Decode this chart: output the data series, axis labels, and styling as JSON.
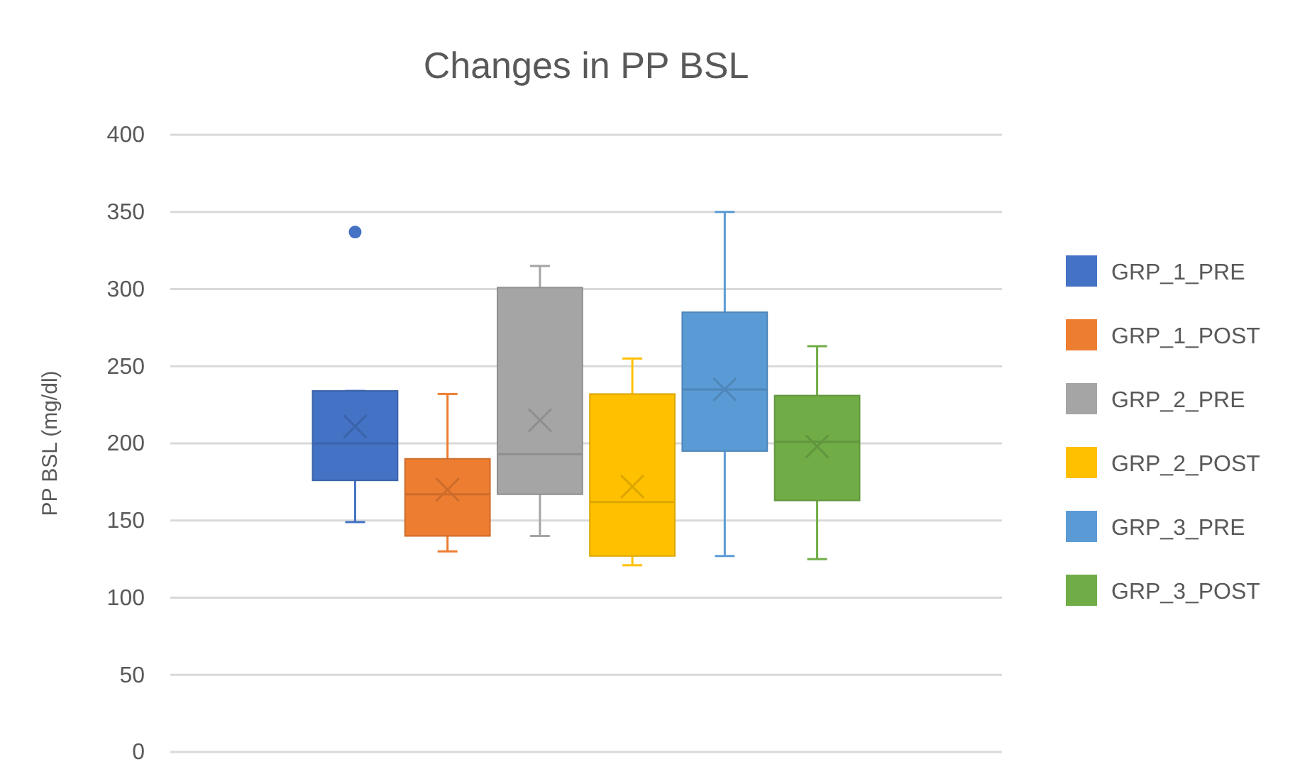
{
  "chart_data": {
    "type": "box",
    "title": "Changes in PP BSL",
    "ylabel": "PP BSL (mg/dl)",
    "categories": [
      null
    ],
    "ylim": [
      0,
      400
    ],
    "yticks": [
      0,
      50,
      100,
      150,
      200,
      250,
      300,
      350,
      400
    ],
    "grid": "y",
    "legend": "right",
    "series": [
      {
        "name": "GRP_1_PRE",
        "color": "#4472c4",
        "boxes": [
          {
            "low": 149,
            "q1": 176,
            "median": 200,
            "q3": 234,
            "high": 234,
            "mean": 211,
            "outliers": [
              337
            ]
          }
        ]
      },
      {
        "name": "GRP_1_POST",
        "color": "#ed7d31",
        "boxes": [
          {
            "low": 130,
            "q1": 140,
            "median": 167,
            "q3": 190,
            "high": 232,
            "mean": 170
          }
        ]
      },
      {
        "name": "GRP_2_PRE",
        "color": "#a5a5a5",
        "boxes": [
          {
            "low": 140,
            "q1": 167,
            "median": 193,
            "q3": 301,
            "high": 315,
            "mean": 215
          }
        ]
      },
      {
        "name": "GRP_2_POST",
        "color": "#ffc000",
        "boxes": [
          {
            "low": 121,
            "q1": 127,
            "median": 162,
            "q3": 232,
            "high": 255,
            "mean": 172
          }
        ]
      },
      {
        "name": "GRP_3_PRE",
        "color": "#5b9bd5",
        "boxes": [
          {
            "low": 127,
            "q1": 195,
            "median": 235,
            "q3": 285,
            "high": 350,
            "mean": 235
          }
        ]
      },
      {
        "name": "GRP_3_POST",
        "color": "#70ad47",
        "boxes": [
          {
            "low": 125,
            "q1": 163,
            "median": 201,
            "q3": 231,
            "high": 263,
            "mean": 198
          }
        ]
      }
    ]
  }
}
